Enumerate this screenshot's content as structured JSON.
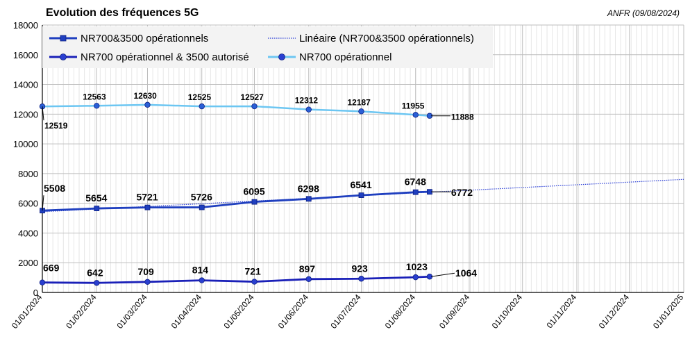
{
  "chart_data": {
    "type": "line",
    "title": "Evolution des fréquences 5G",
    "source": "ANFR (09/08/2024)",
    "x_tick_labels": [
      "01/01/2024",
      "01/02/2024",
      "01/03/2024",
      "01/04/2024",
      "01/05/2024",
      "01/06/2024",
      "01/07/2024",
      "01/08/2024",
      "01/09/2024",
      "01/10/2024",
      "01/11/2024",
      "01/12/2024",
      "01/01/2025"
    ],
    "x_range": [
      "2024-01-01",
      "2025-01-01"
    ],
    "ylim": [
      0,
      18000
    ],
    "y_ticks": [
      0,
      2000,
      4000,
      6000,
      8000,
      10000,
      12000,
      14000,
      16000,
      18000
    ],
    "grid": true,
    "legend_position": "top",
    "series": [
      {
        "name": "NR700&3500 opérationnels",
        "color": "#1f3fbf",
        "marker": "square",
        "x": [
          "2024-01-01",
          "2024-02-01",
          "2024-03-01",
          "2024-04-01",
          "2024-05-01",
          "2024-06-01",
          "2024-07-01",
          "2024-08-01",
          "2024-08-09"
        ],
        "values": [
          5508,
          5654,
          5721,
          5726,
          6095,
          6298,
          6541,
          6748,
          6772
        ],
        "labels": [
          "5508",
          "5654",
          "5721",
          "5726",
          "6095",
          "6298",
          "6541",
          "6748",
          "6772"
        ]
      },
      {
        "name": "NR700 opérationnel & 3500 autorisé",
        "color": "#1a20b8",
        "marker": "circle",
        "x": [
          "2024-01-01",
          "2024-02-01",
          "2024-03-01",
          "2024-04-01",
          "2024-05-01",
          "2024-06-01",
          "2024-07-01",
          "2024-08-01",
          "2024-08-09"
        ],
        "values": [
          669,
          642,
          709,
          814,
          721,
          897,
          923,
          1023,
          1064
        ],
        "labels": [
          "669",
          "642",
          "709",
          "814",
          "721",
          "897",
          "923",
          "1023",
          "1064"
        ]
      },
      {
        "name": "NR700 opérationnel",
        "color": "#6cc6f2",
        "marker": "circle",
        "x": [
          "2024-01-01",
          "2024-02-01",
          "2024-03-01",
          "2024-04-01",
          "2024-05-01",
          "2024-06-01",
          "2024-07-01",
          "2024-08-01",
          "2024-08-09"
        ],
        "values": [
          12519,
          12563,
          12630,
          12525,
          12527,
          12312,
          12187,
          11955,
          11888
        ],
        "labels": [
          "12519",
          "12563",
          "12630",
          "12525",
          "12527",
          "12312",
          "12187",
          "11955",
          "11888"
        ]
      }
    ],
    "trendline": {
      "name": "Linéaire (NR700&3500 opérationnels)",
      "color": "#2b3fd6",
      "style": "dotted",
      "x": [
        "2024-01-01",
        "2025-01-01"
      ],
      "values": [
        5430,
        7610
      ]
    }
  }
}
